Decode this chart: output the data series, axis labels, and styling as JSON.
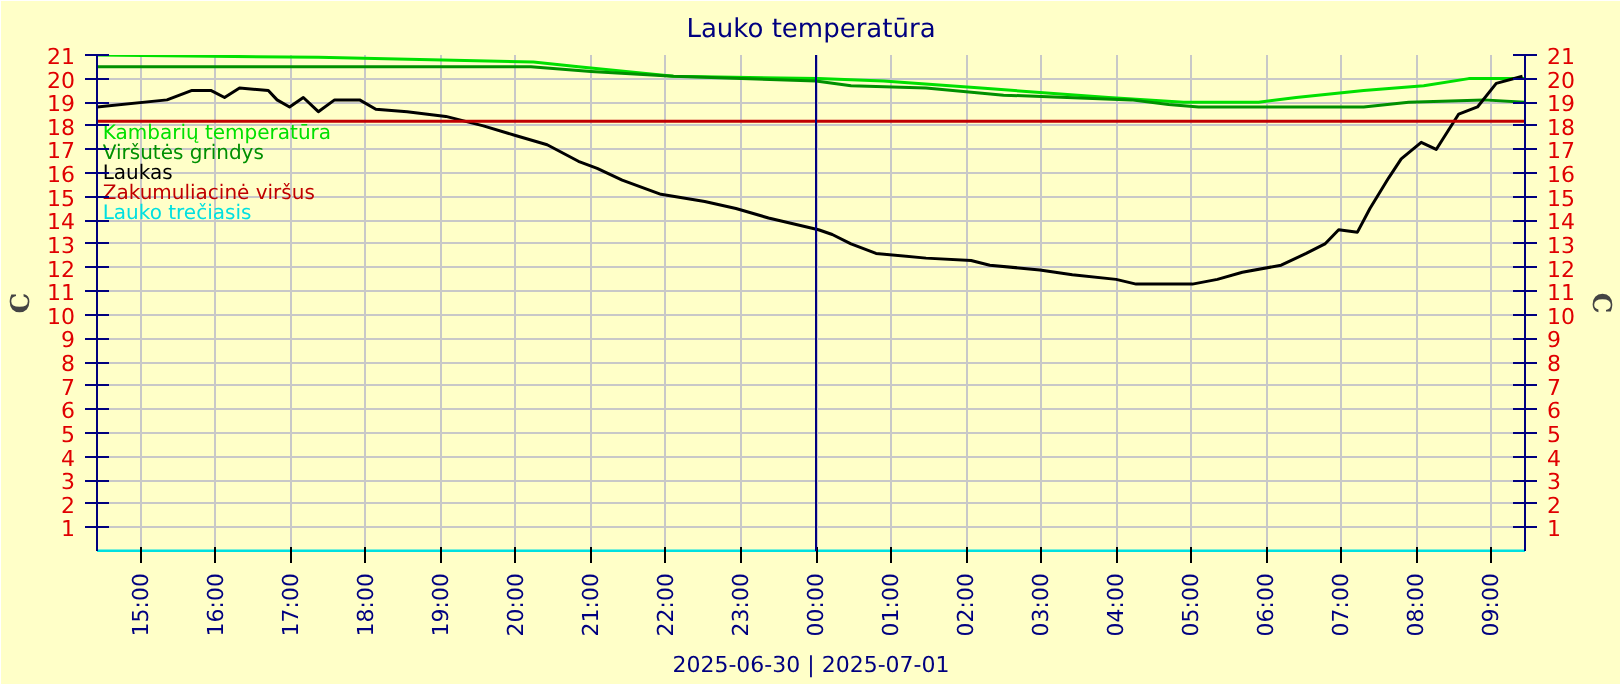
{
  "chart_data": {
    "type": "line",
    "title": "Lauko temperatūra",
    "xlabel": "2025-06-30 | 2025-07-01",
    "ylabel": "C",
    "y2label": "C",
    "xlim": [
      "2025-06-30T14:25",
      "2025-07-01T09:27"
    ],
    "xticks": [
      {
        "value": "2025-06-30T15:00",
        "label": "15:00"
      },
      {
        "value": "2025-06-30T16:00",
        "label": "16:00"
      },
      {
        "value": "2025-06-30T17:00",
        "label": "17:00"
      },
      {
        "value": "2025-06-30T18:00",
        "label": "18:00"
      },
      {
        "value": "2025-06-30T19:00",
        "label": "19:00"
      },
      {
        "value": "2025-06-30T20:00",
        "label": "20:00"
      },
      {
        "value": "2025-06-30T21:00",
        "label": "21:00"
      },
      {
        "value": "2025-06-30T22:00",
        "label": "22:00"
      },
      {
        "value": "2025-06-30T23:00",
        "label": "23:00"
      },
      {
        "value": "2025-07-01T00:00",
        "label": "00:00"
      },
      {
        "value": "2025-07-01T01:00",
        "label": "01:00"
      },
      {
        "value": "2025-07-01T02:00",
        "label": "02:00"
      },
      {
        "value": "2025-07-01T03:00",
        "label": "03:00"
      },
      {
        "value": "2025-07-01T04:00",
        "label": "04:00"
      },
      {
        "value": "2025-07-01T05:00",
        "label": "05:00"
      },
      {
        "value": "2025-07-01T06:00",
        "label": "06:00"
      },
      {
        "value": "2025-07-01T07:00",
        "label": "07:00"
      },
      {
        "value": "2025-07-01T08:00",
        "label": "08:00"
      },
      {
        "value": "2025-07-01T09:00",
        "label": "09:00"
      }
    ],
    "ylim": [
      0,
      21
    ],
    "yticks": [
      1,
      2,
      3,
      4,
      5,
      6,
      7,
      8,
      9,
      10,
      11,
      12,
      13,
      14,
      15,
      16,
      17,
      18,
      19,
      20,
      21
    ],
    "y2lim": [
      0,
      21
    ],
    "y2ticks": [
      1,
      2,
      3,
      4,
      5,
      6,
      7,
      8,
      9,
      10,
      11,
      12,
      13,
      14,
      15,
      16,
      17,
      18,
      19,
      20,
      21
    ],
    "grid": true,
    "legend": "top left",
    "ref_lines": [
      {
        "axis": "x",
        "value": "2025-07-01T00:00",
        "color": "#000080"
      }
    ],
    "series": [
      {
        "name": "Kambarių temperatūra",
        "color": "#00e000",
        "x": [
          "2025-06-30T14:25",
          "2025-06-30T17:22",
          "2025-06-30T20:14",
          "2025-06-30T20:50",
          "2025-06-30T22:06",
          "2025-07-01T00:02",
          "2025-07-01T00:54",
          "2025-07-01T02:12",
          "2025-07-01T03:54",
          "2025-07-01T04:54",
          "2025-07-01T05:54",
          "2025-07-01T06:24",
          "2025-07-01T07:18",
          "2025-07-01T08:06",
          "2025-07-01T08:42",
          "2025-07-01T09:27"
        ],
        "values": [
          21.0,
          20.9,
          20.7,
          20.5,
          20.1,
          20.0,
          19.9,
          19.6,
          19.2,
          19.0,
          19.0,
          19.2,
          19.5,
          19.7,
          20.0,
          20.0
        ]
      },
      {
        "name": "Viršutės grindys",
        "color": "#009000",
        "x": [
          "2025-06-30T14:25",
          "2025-06-30T20:12",
          "2025-06-30T21:00",
          "2025-06-30T22:06",
          "2025-07-01T00:00",
          "2025-07-01T00:28",
          "2025-07-01T01:28",
          "2025-07-01T02:30",
          "2025-07-01T04:12",
          "2025-07-01T04:42",
          "2025-07-01T05:06",
          "2025-07-01T07:18",
          "2025-07-01T07:54",
          "2025-07-01T08:54",
          "2025-07-01T09:27"
        ],
        "values": [
          20.5,
          20.5,
          20.3,
          20.1,
          19.9,
          19.7,
          19.6,
          19.3,
          19.1,
          18.9,
          18.8,
          18.8,
          19.0,
          19.1,
          19.0
        ]
      },
      {
        "name": "Laukas",
        "color": "#000000",
        "x": [
          "2025-06-30T14:25",
          "2025-06-30T15:21",
          "2025-06-30T15:41",
          "2025-06-30T15:56",
          "2025-06-30T16:07",
          "2025-06-30T16:19",
          "2025-06-30T16:42",
          "2025-06-30T16:49",
          "2025-06-30T16:59",
          "2025-06-30T17:10",
          "2025-06-30T17:22",
          "2025-06-30T17:35",
          "2025-06-30T17:55",
          "2025-06-30T18:08",
          "2025-06-30T18:33",
          "2025-06-30T19:04",
          "2025-06-30T19:34",
          "2025-06-30T19:59",
          "2025-06-30T20:25",
          "2025-06-30T20:50",
          "2025-06-30T21:05",
          "2025-06-30T21:25",
          "2025-06-30T21:56",
          "2025-06-30T22:31",
          "2025-06-30T22:56",
          "2025-06-30T23:22",
          "2025-07-01T00:02",
          "2025-07-01T00:13",
          "2025-07-01T00:28",
          "2025-07-01T00:48",
          "2025-07-01T01:28",
          "2025-07-01T02:04",
          "2025-07-01T02:19",
          "2025-07-01T02:59",
          "2025-07-01T03:25",
          "2025-07-01T04:00",
          "2025-07-01T04:16",
          "2025-07-01T05:01",
          "2025-07-01T05:21",
          "2025-07-01T05:41",
          "2025-07-01T06:12",
          "2025-07-01T06:32",
          "2025-07-01T06:47",
          "2025-07-01T06:58",
          "2025-07-01T07:13",
          "2025-07-01T07:23",
          "2025-07-01T07:38",
          "2025-07-01T07:48",
          "2025-07-01T08:04",
          "2025-07-01T08:16",
          "2025-07-01T08:34",
          "2025-07-01T08:49",
          "2025-07-01T09:04",
          "2025-07-01T09:25"
        ],
        "values": [
          18.8,
          19.1,
          19.5,
          19.5,
          19.2,
          19.6,
          19.5,
          19.1,
          18.8,
          19.2,
          18.6,
          19.1,
          19.1,
          18.7,
          18.6,
          18.4,
          18.0,
          17.6,
          17.2,
          16.5,
          16.2,
          15.7,
          15.1,
          14.8,
          14.5,
          14.1,
          13.6,
          13.4,
          13.0,
          12.6,
          12.4,
          12.3,
          12.1,
          11.9,
          11.7,
          11.5,
          11.3,
          11.3,
          11.5,
          11.8,
          12.1,
          12.6,
          13.0,
          13.6,
          13.5,
          14.5,
          15.8,
          16.6,
          17.3,
          17.0,
          18.5,
          18.8,
          19.8,
          20.1
        ]
      },
      {
        "name": "Zakumuliacinė viršus",
        "color": "#c00000",
        "x": [
          "2025-06-30T14:25",
          "2025-07-01T09:27"
        ],
        "values": [
          18.2,
          18.2
        ]
      },
      {
        "name": "Lauko trečiasis",
        "color": "#00e0e0",
        "x": [
          "2025-06-30T14:25",
          "2025-07-01T09:27"
        ],
        "values": [
          0,
          0
        ]
      }
    ]
  }
}
